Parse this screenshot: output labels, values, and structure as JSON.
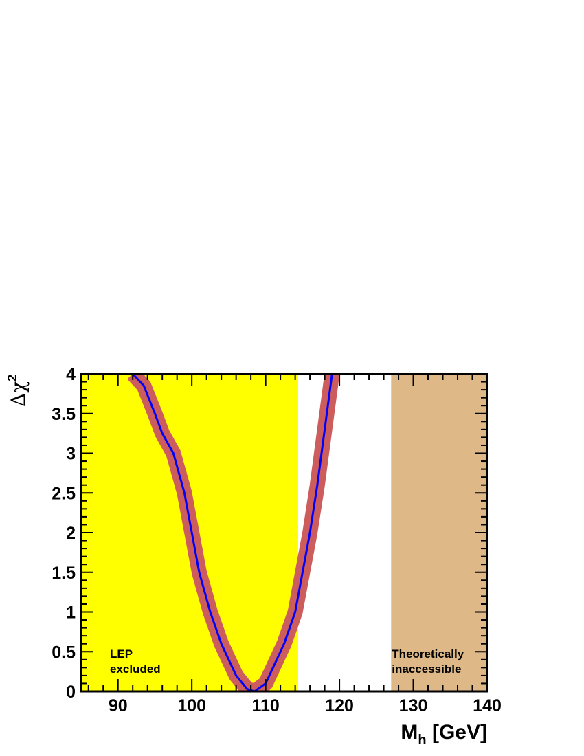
{
  "chart_data": {
    "type": "line",
    "x": [
      92.0,
      93.5,
      95.0,
      96.0,
      97.5,
      99.0,
      100.0,
      101.0,
      102.5,
      104.0,
      106.0,
      107.5,
      108.5,
      110.0,
      111.0,
      112.5,
      114.0,
      115.0,
      116.0,
      117.0,
      118.0,
      119.0
    ],
    "series": [
      {
        "color": "#cd5c5c",
        "line_width": 22,
        "values": [
          4.0,
          3.85,
          3.5,
          3.25,
          3.0,
          2.5,
          2.0,
          1.5,
          1.0,
          0.6,
          0.2,
          0.03,
          0.0,
          0.1,
          0.3,
          0.6,
          1.0,
          1.5,
          2.0,
          2.6,
          3.3,
          4.0
        ]
      },
      {
        "color": "#0000ff",
        "line_width": 3,
        "values": [
          4.0,
          3.85,
          3.5,
          3.25,
          3.0,
          2.5,
          2.0,
          1.5,
          1.0,
          0.6,
          0.2,
          0.03,
          0.0,
          0.1,
          0.3,
          0.6,
          1.0,
          1.5,
          2.0,
          2.6,
          3.3,
          4.0
        ]
      }
    ],
    "regions": [
      {
        "x0": 85,
        "x1": 114.4,
        "color": "#ffff00",
        "label": [
          "LEP",
          "excluded"
        ]
      },
      {
        "x0": 127,
        "x1": 140,
        "color": "#deb887",
        "label": [
          "Theoretically",
          "inaccessible"
        ]
      }
    ],
    "xlim": [
      85,
      140
    ],
    "xticks": [
      90,
      100,
      110,
      120,
      130,
      140
    ],
    "ylim": [
      0,
      4
    ],
    "yticks": [
      0,
      0.5,
      1,
      1.5,
      2,
      2.5,
      3,
      3.5,
      4
    ],
    "ylabel": "Δχ",
    "ylabel_sup": "2",
    "xlabel": "M",
    "xlabel_sub": "h",
    "xlabel_rest": " [GeV]"
  }
}
